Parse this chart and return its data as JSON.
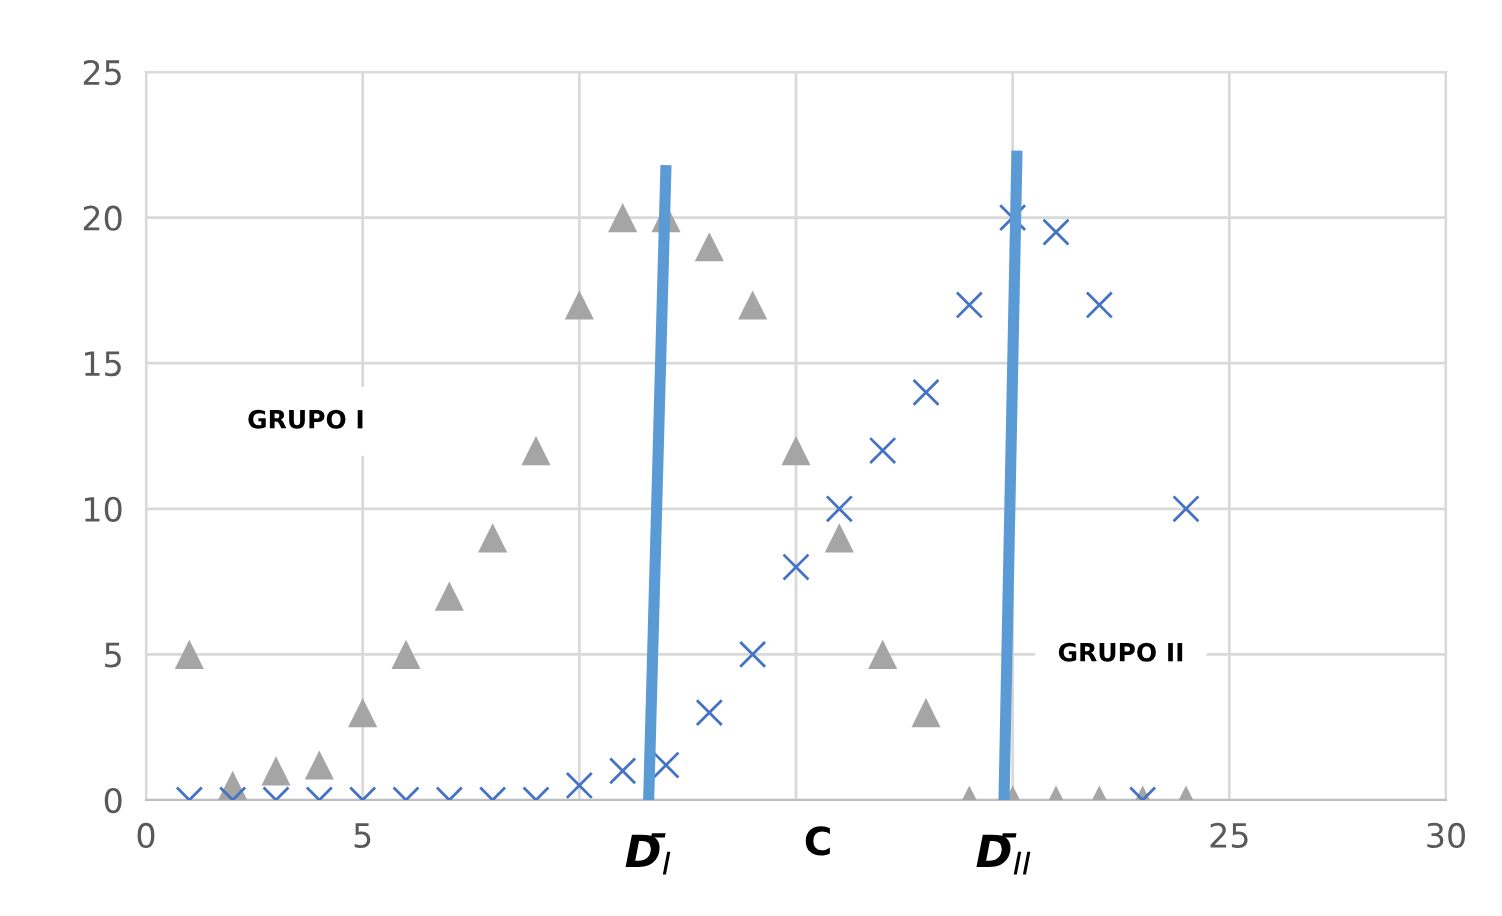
{
  "chart_data": {
    "type": "scatter",
    "x": [
      1,
      2,
      3,
      4,
      5,
      6,
      7,
      8,
      9,
      10,
      11,
      12,
      13,
      14,
      15,
      16,
      17,
      18,
      19,
      20,
      21,
      22,
      23,
      24
    ],
    "xlim": [
      0,
      30
    ],
    "xticks": [
      0,
      5,
      {
        "value": 10,
        "label": null
      },
      {
        "value": 15,
        "label": null
      },
      {
        "value": 20,
        "label": null
      },
      25,
      30
    ],
    "ylim": [
      0,
      25
    ],
    "yticks": [
      0,
      5,
      10,
      15,
      20,
      25
    ],
    "grid": true,
    "legend": false,
    "series": [
      {
        "marker": "triangle",
        "color": "#a5a5a5",
        "values": [
          5,
          0.5,
          1,
          1.2,
          3,
          5,
          7,
          9,
          12,
          17,
          20,
          20,
          19,
          17,
          12,
          9,
          5,
          3,
          0,
          0,
          0,
          0,
          0,
          0
        ]
      },
      {
        "marker": "cross",
        "color": "#4472c4",
        "values": [
          0,
          0,
          0,
          0,
          0,
          0,
          0,
          0,
          0,
          0.5,
          1,
          1.2,
          3,
          5,
          8,
          10,
          12,
          14,
          17,
          20,
          19.5,
          17,
          0,
          10
        ]
      },
      {
        "type": "line",
        "name": "D̄$_{I}$",
        "color": "#5b9bd5",
        "x": [
          11.6,
          12
        ],
        "values": [
          0,
          21.8
        ]
      },
      {
        "type": "line",
        "name": "D̄$_{II}$",
        "color": "#5b9bd5",
        "x": [
          19.8,
          20.1
        ],
        "values": [
          0,
          22.3
        ]
      }
    ],
    "annotations": [
      "GRUPO I",
      "GRUPO II",
      "C"
    ]
  }
}
